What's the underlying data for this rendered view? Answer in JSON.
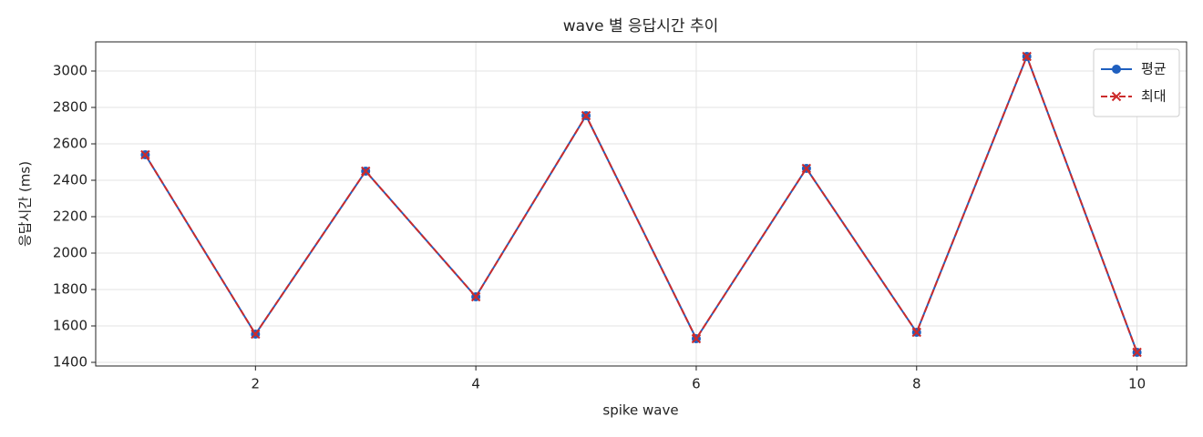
{
  "chart_data": {
    "type": "line",
    "title": "wave 별 응답시간 추이",
    "x_label": "spike wave",
    "y_label": "응답시간 (ms)",
    "x": [
      1,
      2,
      3,
      4,
      5,
      6,
      7,
      8,
      9,
      10
    ],
    "series": [
      {
        "name": "평균",
        "color": "#1f5fbf",
        "style": "solid",
        "marker": "circle",
        "values": [
          2540,
          1555,
          2450,
          1760,
          2755,
          1530,
          2465,
          1565,
          3080,
          1455
        ]
      },
      {
        "name": "최대",
        "color": "#cc2b2b",
        "style": "dashed",
        "marker": "x",
        "values": [
          2540,
          1555,
          2450,
          1760,
          2755,
          1530,
          2465,
          1565,
          3080,
          1455
        ]
      }
    ],
    "xlim": [
      0.55,
      10.45
    ],
    "xticks": [
      2,
      4,
      6,
      8,
      10
    ],
    "ylim": [
      1380,
      3160
    ],
    "yticks": [
      1400,
      1600,
      1800,
      2000,
      2200,
      2400,
      2600,
      2800,
      3000
    ],
    "grid": true,
    "legend": "upper right"
  }
}
